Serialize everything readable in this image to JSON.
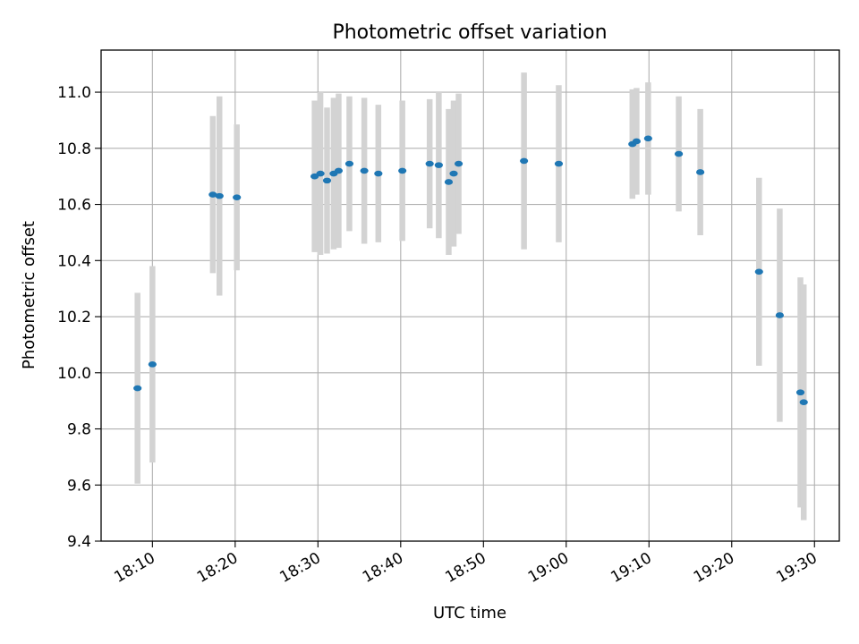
{
  "chart_data": {
    "type": "scatter",
    "title": "Photometric offset variation",
    "xlabel": "UTC time",
    "ylabel": "Photometric offset",
    "x_ticks": [
      "18:10",
      "18:20",
      "18:30",
      "18:40",
      "18:50",
      "19:00",
      "19:10",
      "19:20",
      "19:30"
    ],
    "x_tick_minutes": [
      0,
      10,
      20,
      30,
      40,
      50,
      60,
      70,
      80
    ],
    "y_ticks": [
      "9.4",
      "9.6",
      "9.8",
      "10.0",
      "10.2",
      "10.4",
      "10.6",
      "10.8",
      "11.0"
    ],
    "xlim_minutes": [
      -6.2,
      83.0
    ],
    "ylim": [
      9.4,
      11.15
    ],
    "grid": true,
    "marker_color": "#1f77b4",
    "errorbar_color": "#d3d3d3",
    "points": [
      {
        "t": "18:08:12",
        "y": 9.945,
        "err": 0.34
      },
      {
        "t": "18:10:00",
        "y": 10.03,
        "err": 0.35
      },
      {
        "t": "18:17:18",
        "y": 10.635,
        "err": 0.28
      },
      {
        "t": "18:18:06",
        "y": 10.63,
        "err": 0.355
      },
      {
        "t": "18:20:12",
        "y": 10.625,
        "err": 0.26
      },
      {
        "t": "18:29:36",
        "y": 10.7,
        "err": 0.27
      },
      {
        "t": "18:30:18",
        "y": 10.71,
        "err": 0.29
      },
      {
        "t": "18:31:06",
        "y": 10.685,
        "err": 0.26
      },
      {
        "t": "18:31:54",
        "y": 10.71,
        "err": 0.27
      },
      {
        "t": "18:32:30",
        "y": 10.72,
        "err": 0.275
      },
      {
        "t": "18:33:48",
        "y": 10.745,
        "err": 0.24
      },
      {
        "t": "18:35:36",
        "y": 10.72,
        "err": 0.26
      },
      {
        "t": "18:37:18",
        "y": 10.71,
        "err": 0.245
      },
      {
        "t": "18:40:12",
        "y": 10.72,
        "err": 0.25
      },
      {
        "t": "18:43:30",
        "y": 10.745,
        "err": 0.23
      },
      {
        "t": "18:44:36",
        "y": 10.74,
        "err": 0.26
      },
      {
        "t": "18:45:48",
        "y": 10.68,
        "err": 0.26
      },
      {
        "t": "18:46:24",
        "y": 10.71,
        "err": 0.26
      },
      {
        "t": "18:47:00",
        "y": 10.745,
        "err": 0.25
      },
      {
        "t": "18:54:54",
        "y": 10.755,
        "err": 0.315
      },
      {
        "t": "18:59:06",
        "y": 10.745,
        "err": 0.28
      },
      {
        "t": "19:08:00",
        "y": 10.815,
        "err": 0.195
      },
      {
        "t": "19:08:30",
        "y": 10.825,
        "err": 0.19
      },
      {
        "t": "19:09:54",
        "y": 10.835,
        "err": 0.2
      },
      {
        "t": "19:13:36",
        "y": 10.78,
        "err": 0.205
      },
      {
        "t": "19:16:12",
        "y": 10.715,
        "err": 0.225
      },
      {
        "t": "19:23:18",
        "y": 10.36,
        "err": 0.335
      },
      {
        "t": "19:25:48",
        "y": 10.205,
        "err": 0.38
      },
      {
        "t": "19:28:18",
        "y": 9.93,
        "err": 0.41
      },
      {
        "t": "19:28:42",
        "y": 9.895,
        "err": 0.42
      }
    ]
  }
}
